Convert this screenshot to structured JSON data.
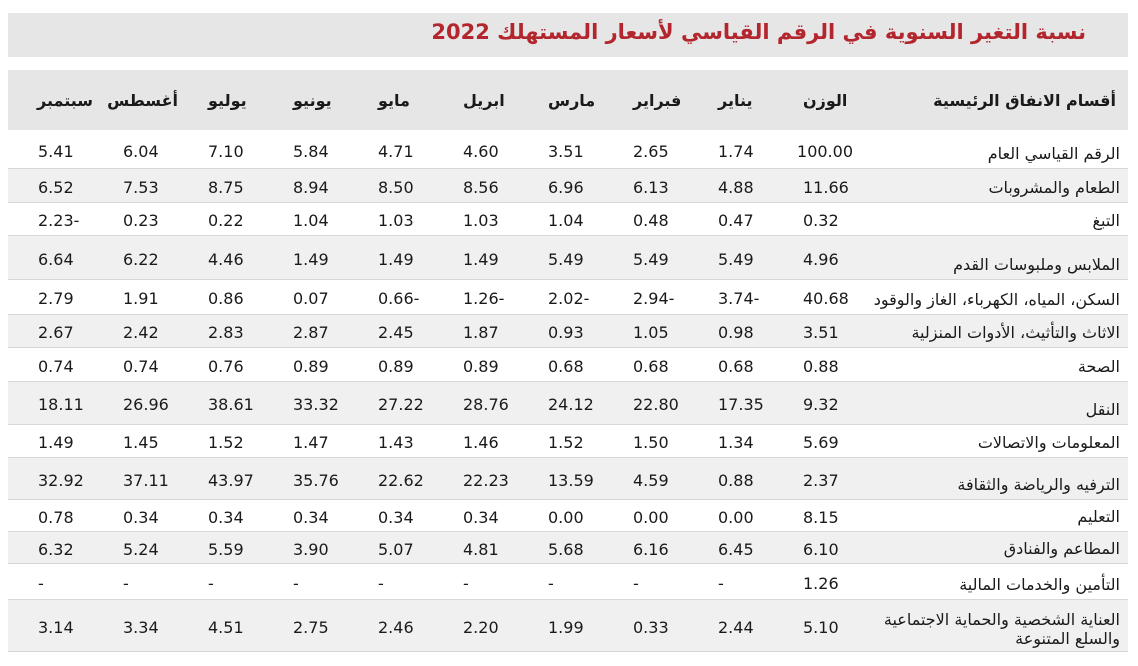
{
  "title": "نسبة التغير السنوية في الرقم القياسي لأسعار المستهلك 2022",
  "headers": [
    "أقسام الانفاق الرئيسية",
    "الوزن",
    "يناير",
    "فبراير",
    "مارس",
    "ابريل",
    "مايو",
    "يونيو",
    "يوليو",
    "أغسطس",
    "سبتمبر"
  ],
  "rows": [
    {
      "name": "الرقم القياسي العام",
      "values": [
        "100.00",
        "1.74",
        "2.65",
        "3.51",
        "4.60",
        "4.71",
        "5.84",
        "7.10",
        "6.04",
        "5.41"
      ]
    },
    {
      "name": "الطعام والمشروبات",
      "values": [
        "11.66",
        "4.88",
        "6.13",
        "6.96",
        "8.56",
        "8.50",
        "8.94",
        "8.75",
        "7.53",
        "6.52"
      ]
    },
    {
      "name": "التبغ",
      "values": [
        "0.32",
        "0.47",
        "0.48",
        "1.04",
        "1.03",
        "1.03",
        "1.04",
        "0.22",
        "0.23",
        "-2.23"
      ]
    },
    {
      "name": "الملابس وملبوسات القدم",
      "values": [
        "4.96",
        "5.49",
        "5.49",
        "5.49",
        "1.49",
        "1.49",
        "1.49",
        "4.46",
        "6.22",
        "6.64"
      ]
    },
    {
      "name": "السكن، المياه، الكهرباء، الغاز والوقود",
      "values": [
        "40.68",
        "-3.74",
        "-2.94",
        "-2.02",
        "-1.26",
        "-0.66",
        "0.07",
        "0.86",
        "1.91",
        "2.79"
      ]
    },
    {
      "name": "الاثاث والتأثيث، الأدوات المنزلية",
      "values": [
        "3.51",
        "0.98",
        "1.05",
        "0.93",
        "1.87",
        "2.45",
        "2.87",
        "2.83",
        "2.42",
        "2.67"
      ]
    },
    {
      "name": "الصحة",
      "values": [
        "0.88",
        "0.68",
        "0.68",
        "0.68",
        "0.89",
        "0.89",
        "0.89",
        "0.76",
        "0.74",
        "0.74"
      ]
    },
    {
      "name": "النقل",
      "values": [
        "9.32",
        "17.35",
        "22.80",
        "24.12",
        "28.76",
        "27.22",
        "33.32",
        "38.61",
        "26.96",
        "18.11"
      ]
    },
    {
      "name": "المعلومات والاتصالات",
      "values": [
        "5.69",
        "1.34",
        "1.50",
        "1.52",
        "1.46",
        "1.43",
        "1.47",
        "1.52",
        "1.45",
        "1.49"
      ]
    },
    {
      "name": "الترفيه والرياضة والثقافة",
      "values": [
        "2.37",
        "0.88",
        "4.59",
        "13.59",
        "22.23",
        "22.62",
        "35.76",
        "43.97",
        "37.11",
        "32.92"
      ]
    },
    {
      "name": "التعليم",
      "values": [
        "8.15",
        "0.00",
        "0.00",
        "0.00",
        "0.34",
        "0.34",
        "0.34",
        "0.34",
        "0.34",
        "0.78"
      ]
    },
    {
      "name": "المطاعم والفنادق",
      "values": [
        "6.10",
        "6.45",
        "6.16",
        "5.68",
        "4.81",
        "5.07",
        "3.90",
        "5.59",
        "5.24",
        "6.32"
      ]
    },
    {
      "name": "التأمين والخدمات المالية",
      "values": [
        "1.26",
        "-",
        "-",
        "-",
        "-",
        "-",
        "-",
        "-",
        "-",
        "-"
      ]
    },
    {
      "name": "العناية الشخصية والحماية الاجتماعية والسلع المتنوعة",
      "values": [
        "5.10",
        "2.44",
        "0.33",
        "1.99",
        "2.20",
        "2.46",
        "2.75",
        "4.51",
        "3.34",
        "3.14"
      ]
    }
  ]
}
